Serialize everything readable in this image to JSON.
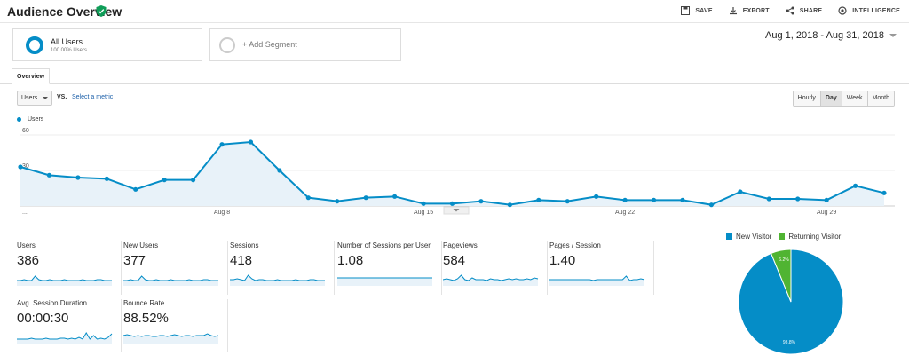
{
  "header": {
    "title": "Audience Overview",
    "actions": [
      {
        "label": "SAVE",
        "icon": "save-icon"
      },
      {
        "label": "EXPORT",
        "icon": "export-icon"
      },
      {
        "label": "SHARE",
        "icon": "share-icon"
      },
      {
        "label": "INTELLIGENCE",
        "icon": "intelligence-icon"
      }
    ]
  },
  "segments": {
    "primary": {
      "name": "All Users",
      "sub": "100.00% Users"
    },
    "add_label": "+ Add Segment"
  },
  "date_range": "Aug 1, 2018 - Aug 31, 2018",
  "tabs": [
    {
      "label": "Overview"
    }
  ],
  "controls": {
    "metric": "Users",
    "vs": "VS.",
    "select_metric": "Select a metric",
    "granularity": [
      "Hourly",
      "Day",
      "Week",
      "Month"
    ],
    "active_granularity": "Day"
  },
  "colors": {
    "primary": "#058dc7",
    "secondary": "#50b432"
  },
  "chart_data": [
    {
      "type": "area",
      "series": [
        {
          "name": "Users",
          "values": [
            33,
            26,
            24,
            23,
            14,
            22,
            22,
            52,
            54,
            30,
            7,
            4,
            7,
            8,
            2,
            2,
            4,
            1,
            5,
            4,
            8,
            5,
            5,
            5,
            1,
            12,
            6,
            6,
            5,
            17,
            11
          ]
        }
      ],
      "x": [
        1,
        2,
        3,
        4,
        5,
        6,
        7,
        8,
        9,
        10,
        11,
        12,
        13,
        14,
        15,
        16,
        17,
        18,
        19,
        20,
        21,
        22,
        23,
        24,
        25,
        26,
        27,
        28,
        29,
        30,
        31
      ],
      "x_tick_labels": [
        "...",
        "Aug 8",
        "Aug 15",
        "Aug 22",
        "Aug 29"
      ],
      "y_ticks": [
        "60",
        "30"
      ],
      "ylim": [
        0,
        60
      ]
    },
    {
      "type": "pie",
      "labels": [
        "New Visitor",
        "Returning Visitor"
      ],
      "values": [
        93.8,
        6.2
      ],
      "value_labels": [
        "93.8%",
        "6.2%"
      ]
    }
  ],
  "scorecards": [
    {
      "label": "Users",
      "value": "386",
      "spark": [
        5,
        5,
        6,
        5,
        5,
        10,
        6,
        5,
        5,
        6,
        5,
        5,
        5,
        6,
        5,
        5,
        5,
        5,
        6,
        5,
        5,
        5,
        6,
        6,
        5,
        5,
        5
      ]
    },
    {
      "label": "New Users",
      "value": "377",
      "spark": [
        5,
        5,
        6,
        5,
        5,
        10,
        6,
        5,
        5,
        6,
        5,
        5,
        5,
        6,
        5,
        5,
        5,
        5,
        6,
        5,
        5,
        5,
        6,
        6,
        5,
        5,
        5
      ]
    },
    {
      "label": "Sessions",
      "value": "418",
      "spark": [
        6,
        6,
        7,
        6,
        5,
        11,
        7,
        5,
        6,
        6,
        5,
        5,
        5,
        6,
        5,
        5,
        5,
        5,
        6,
        5,
        5,
        5,
        6,
        6,
        5,
        5,
        5
      ]
    },
    {
      "label": "Number of Sessions per User",
      "value": "1.08",
      "spark": [
        8,
        8,
        8,
        8,
        8,
        8,
        8,
        8,
        8,
        8,
        8,
        8,
        8,
        8,
        8,
        8,
        8,
        8,
        8,
        8,
        8,
        8,
        8,
        8,
        8,
        8,
        8
      ]
    },
    {
      "label": "Pageviews",
      "value": "584",
      "spark": [
        6,
        7,
        6,
        5,
        7,
        11,
        6,
        5,
        8,
        6,
        6,
        6,
        5,
        7,
        6,
        6,
        5,
        6,
        7,
        6,
        7,
        6,
        6,
        7,
        6,
        8,
        7
      ]
    },
    {
      "label": "Pages / Session",
      "value": "1.40",
      "spark": [
        6,
        6,
        6,
        6,
        6,
        6,
        6,
        6,
        6,
        6,
        6,
        6,
        5,
        6,
        6,
        6,
        6,
        6,
        6,
        6,
        6,
        10,
        5,
        6,
        6,
        7,
        6
      ]
    },
    {
      "label": "Avg. Session Duration",
      "value": "00:00:30",
      "spark": [
        4,
        4,
        4,
        4,
        5,
        4,
        4,
        4,
        5,
        4,
        4,
        4,
        5,
        5,
        4,
        5,
        4,
        6,
        4,
        11,
        4,
        8,
        4,
        5,
        4,
        6,
        10
      ]
    },
    {
      "label": "Bounce Rate",
      "value": "88.52%",
      "spark": [
        8,
        9,
        8,
        7,
        8,
        7,
        8,
        8,
        7,
        7,
        8,
        8,
        7,
        8,
        9,
        8,
        7,
        8,
        8,
        7,
        8,
        8,
        8,
        10,
        8,
        7,
        8
      ]
    }
  ]
}
